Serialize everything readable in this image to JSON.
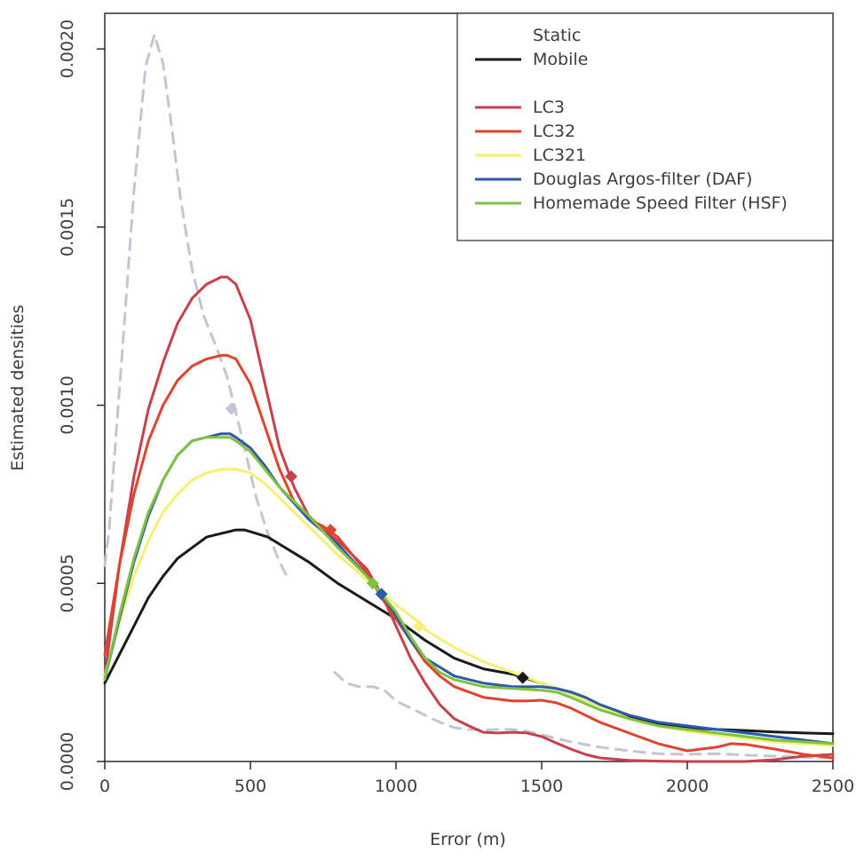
{
  "chart_data": {
    "type": "line",
    "title": "",
    "xlabel": "Error (m)",
    "ylabel": "Estimated densities",
    "xlim": [
      0,
      2500
    ],
    "ylim": [
      0,
      0.0021
    ],
    "x_ticks": [
      0,
      500,
      1000,
      1500,
      2000,
      2500
    ],
    "x_tick_labels": [
      "0",
      "500",
      "1000",
      "1500",
      "2000",
      "2500"
    ],
    "y_ticks": [
      0,
      0.0005,
      0.001,
      0.0015,
      0.002
    ],
    "y_tick_labels": [
      "0.0000",
      "0.0005",
      "0.0010",
      "0.0015",
      "0.0020"
    ],
    "grid": false,
    "legend_position": "top-right",
    "legend_groups": [
      {
        "items": [
          {
            "label": "Static",
            "series": "static"
          },
          {
            "label": "Mobile",
            "series": "mobile"
          }
        ]
      },
      {
        "items": [
          {
            "label": "LC3",
            "series": "lc3"
          },
          {
            "label": "LC32",
            "series": "lc32"
          },
          {
            "label": "LC321",
            "series": "lc321"
          },
          {
            "label": "Douglas Argos-filter (DAF)",
            "series": "daf"
          },
          {
            "label": "Homemade Speed Filter (HSF)",
            "series": "hsf"
          }
        ]
      }
    ],
    "series": [
      {
        "id": "static",
        "name": "Static",
        "color": "#c4c4d4",
        "dash": true,
        "width": 3,
        "x": [
          0,
          15,
          30,
          60,
          100,
          140,
          170,
          200,
          230,
          260,
          300,
          340,
          380,
          420,
          450,
          480,
          520,
          560,
          600,
          625
        ],
        "y": [
          0.00055,
          0.00065,
          0.00082,
          0.00115,
          0.0016,
          0.00195,
          0.00204,
          0.00196,
          0.00178,
          0.00158,
          0.00138,
          0.00125,
          0.00117,
          0.00108,
          0.00098,
          0.00088,
          0.00074,
          0.00064,
          0.00056,
          0.00052
        ],
        "marker": {
          "x": 435,
          "y": 0.00099
        },
        "series2": {
          "x": [
            790,
            830,
            870,
            920,
            960,
            1000,
            1050,
            1100,
            1150,
            1200,
            1250,
            1300,
            1350,
            1400,
            1450,
            1500,
            1600,
            1700,
            1800,
            1900,
            2000,
            2100,
            2200,
            2300,
            2400,
            2500
          ],
          "y": [
            0.00025,
            0.00022,
            0.00021,
            0.00021,
            0.0002,
            0.00017,
            0.00015,
            0.00013,
            0.00011,
            9.5e-05,
            9e-05,
            8.8e-05,
            9e-05,
            9e-05,
            8.5e-05,
            7.5e-05,
            5.5e-05,
            4e-05,
            3e-05,
            2.2e-05,
            2e-05,
            2.2e-05,
            1.8e-05,
            1.5e-05,
            1.2e-05,
            1e-05
          ]
        }
      },
      {
        "id": "mobile",
        "name": "Mobile",
        "color": "#1a1a1a",
        "width": 3,
        "x": [
          0,
          50,
          100,
          150,
          200,
          250,
          300,
          350,
          400,
          450,
          480,
          520,
          560,
          600,
          700,
          800,
          900,
          1000,
          1100,
          1200,
          1300,
          1400,
          1500,
          1600,
          1700,
          1800,
          1900,
          2000,
          2100,
          2200,
          2300,
          2400,
          2500
        ],
        "y": [
          0.00022,
          0.0003,
          0.00038,
          0.00046,
          0.00052,
          0.00057,
          0.0006,
          0.00063,
          0.00064,
          0.00065,
          0.00065,
          0.00064,
          0.00063,
          0.00061,
          0.00056,
          0.0005,
          0.00045,
          0.0004,
          0.00034,
          0.00029,
          0.00026,
          0.000245,
          0.00022,
          0.00019,
          0.000155,
          0.000125,
          0.000105,
          9.5e-05,
          9e-05,
          8.7e-05,
          8.3e-05,
          8e-05,
          7.8e-05
        ],
        "marker": {
          "x": 1435,
          "y": 0.000235
        }
      },
      {
        "id": "lc3",
        "name": "LC3",
        "color": "#c7404c",
        "width": 3,
        "x": [
          0,
          50,
          100,
          150,
          200,
          250,
          300,
          350,
          400,
          420,
          450,
          500,
          550,
          600,
          650,
          700,
          750,
          800,
          850,
          900,
          950,
          1000,
          1050,
          1100,
          1150,
          1200,
          1250,
          1300,
          1350,
          1400,
          1450,
          1500,
          1550,
          1600,
          1650,
          1700,
          1800,
          1900,
          2000,
          2100,
          2200,
          2300,
          2400,
          2500
        ],
        "y": [
          0.00024,
          0.00055,
          0.0008,
          0.00099,
          0.00112,
          0.00123,
          0.0013,
          0.00134,
          0.00136,
          0.00136,
          0.00134,
          0.00124,
          0.00106,
          0.00088,
          0.00077,
          0.00069,
          0.00065,
          0.00062,
          0.00058,
          0.00054,
          0.00047,
          0.00038,
          0.00029,
          0.00022,
          0.00016,
          0.00012,
          0.0001,
          8.2e-05,
          8e-05,
          8.2e-05,
          8e-05,
          7e-05,
          5.2e-05,
          3.5e-05,
          2e-05,
          1e-05,
          3e-06,
          1e-06,
          0.0,
          0.0,
          0.0,
          5e-06,
          1.5e-05,
          2e-05
        ],
        "marker": {
          "x": 640,
          "y": 0.0008
        }
      },
      {
        "id": "lc32",
        "name": "LC32",
        "color": "#e0432e",
        "width": 3,
        "x": [
          0,
          50,
          100,
          150,
          200,
          250,
          300,
          350,
          400,
          420,
          450,
          500,
          550,
          600,
          650,
          700,
          750,
          800,
          850,
          900,
          950,
          1000,
          1050,
          1100,
          1150,
          1200,
          1300,
          1400,
          1450,
          1500,
          1550,
          1600,
          1650,
          1700,
          1800,
          1900,
          2000,
          2100,
          2150,
          2200,
          2300,
          2400,
          2500
        ],
        "y": [
          0.0003,
          0.00055,
          0.00075,
          0.0009,
          0.001,
          0.00107,
          0.00111,
          0.00113,
          0.00114,
          0.00114,
          0.00113,
          0.00106,
          0.00094,
          0.00082,
          0.00073,
          0.00068,
          0.00066,
          0.00063,
          0.00058,
          0.00053,
          0.00046,
          0.0004,
          0.00034,
          0.00028,
          0.00024,
          0.00021,
          0.00018,
          0.00017,
          0.00017,
          0.000172,
          0.000165,
          0.00015,
          0.00013,
          0.00011,
          8e-05,
          5e-05,
          3e-05,
          4e-05,
          5e-05,
          4.8e-05,
          3.5e-05,
          2e-05,
          1e-05
        ],
        "marker": {
          "x": 775,
          "y": 0.00065
        }
      },
      {
        "id": "lc321",
        "name": "LC321",
        "color": "#f5ef72",
        "width": 3,
        "x": [
          0,
          50,
          100,
          150,
          200,
          250,
          300,
          350,
          400,
          450,
          500,
          550,
          600,
          700,
          800,
          900,
          1000,
          1080,
          1100,
          1200,
          1300,
          1400,
          1500,
          1600,
          1700,
          1800,
          1900,
          2000,
          2100,
          2200,
          2300,
          2400,
          2500
        ],
        "y": [
          0.00024,
          0.00039,
          0.00052,
          0.00062,
          0.0007,
          0.00075,
          0.00079,
          0.00081,
          0.00082,
          0.00082,
          0.00081,
          0.00078,
          0.00074,
          0.00066,
          0.00058,
          0.00051,
          0.00044,
          0.00039,
          0.00037,
          0.00032,
          0.00028,
          0.00025,
          0.00022,
          0.00019,
          0.000155,
          0.00012,
          0.0001,
          8.5e-05,
          7.5e-05,
          6.5e-05,
          5.5e-05,
          5e-05,
          4.5e-05
        ],
        "marker": {
          "x": 1080,
          "y": 0.00038
        }
      },
      {
        "id": "daf",
        "name": "Douglas Argos-filter (DAF)",
        "color": "#2a5aa8",
        "width": 3,
        "x": [
          0,
          50,
          100,
          150,
          200,
          250,
          300,
          350,
          400,
          430,
          450,
          500,
          550,
          600,
          700,
          800,
          900,
          950,
          1000,
          1050,
          1100,
          1150,
          1200,
          1300,
          1400,
          1500,
          1550,
          1600,
          1650,
          1700,
          1800,
          1900,
          2000,
          2100,
          2200,
          2300,
          2400,
          2500
        ],
        "y": [
          0.00023,
          0.0004,
          0.00056,
          0.00069,
          0.00079,
          0.00086,
          0.0009,
          0.00091,
          0.00092,
          0.00092,
          0.00091,
          0.00088,
          0.00083,
          0.00077,
          0.00068,
          0.00061,
          0.00052,
          0.00047,
          0.00041,
          0.00034,
          0.00029,
          0.000265,
          0.00024,
          0.00022,
          0.00021,
          0.00021,
          0.000205,
          0.000195,
          0.00018,
          0.00016,
          0.00013,
          0.00011,
          0.0001,
          9e-05,
          8e-05,
          7e-05,
          6e-05,
          5e-05
        ],
        "marker": {
          "x": 950,
          "y": 0.00047
        }
      },
      {
        "id": "hsf",
        "name": "Homemade Speed Filter (HSF)",
        "color": "#7fc241",
        "width": 3,
        "x": [
          0,
          50,
          100,
          150,
          200,
          250,
          300,
          350,
          400,
          430,
          450,
          500,
          550,
          600,
          700,
          800,
          900,
          920,
          1000,
          1050,
          1100,
          1150,
          1200,
          1300,
          1400,
          1500,
          1550,
          1600,
          1700,
          1800,
          1900,
          2000,
          2100,
          2200,
          2300,
          2400,
          2500
        ],
        "y": [
          0.00023,
          0.00041,
          0.00057,
          0.0007,
          0.00079,
          0.00086,
          0.0009,
          0.00091,
          0.00091,
          0.00091,
          0.0009,
          0.00087,
          0.00082,
          0.00077,
          0.00069,
          0.0006,
          0.00052,
          0.0005,
          0.00042,
          0.00035,
          0.00029,
          0.00025,
          0.00023,
          0.00021,
          0.000205,
          0.0002,
          0.000195,
          0.00018,
          0.000145,
          0.00012,
          0.0001,
          9e-05,
          8e-05,
          7e-05,
          6e-05,
          5.5e-05,
          5e-05
        ],
        "marker": {
          "x": 920,
          "y": 0.0005
        }
      }
    ]
  }
}
